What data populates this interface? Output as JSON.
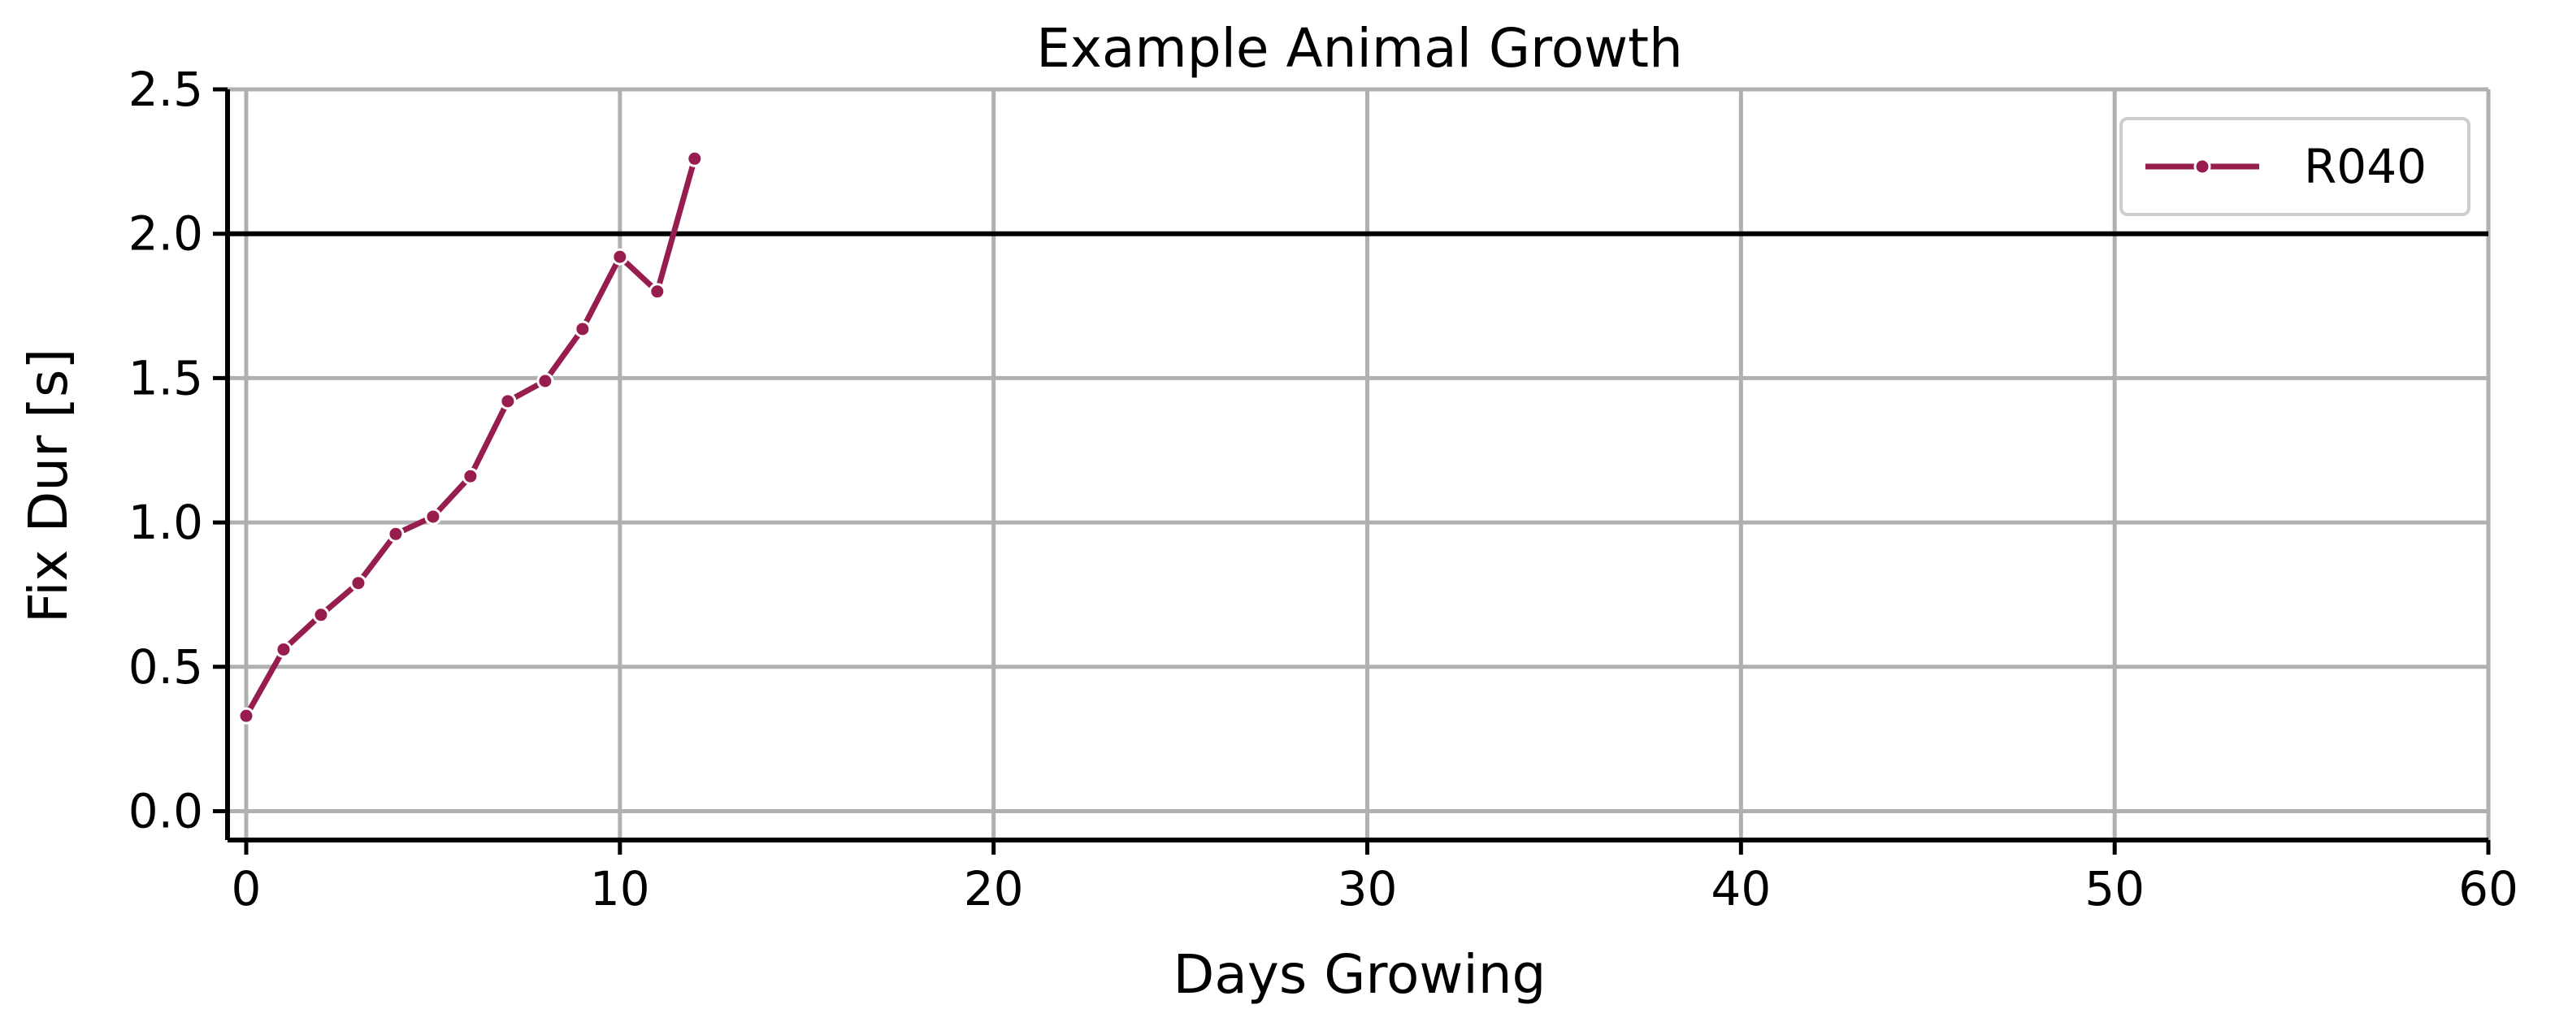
{
  "chart_data": {
    "type": "line",
    "title": "Example Animal Growth",
    "xlabel": "Days Growing",
    "ylabel": "Fix Dur [s]",
    "xlim": [
      -0.5,
      60
    ],
    "ylim": [
      -0.1,
      2.5
    ],
    "xticks": [
      0,
      10,
      20,
      30,
      40,
      50,
      60
    ],
    "yticks": [
      0.0,
      0.5,
      1.0,
      1.5,
      2.0,
      2.5
    ],
    "xtick_labels": [
      "0",
      "10",
      "20",
      "30",
      "40",
      "50",
      "60"
    ],
    "ytick_labels": [
      "0.0",
      "0.5",
      "1.0",
      "1.5",
      "2.0",
      "2.5"
    ],
    "grid": true,
    "reference_line": {
      "y": 2.0,
      "color": "#000000"
    },
    "legend": {
      "position": "top-right"
    },
    "series": [
      {
        "name": "R040",
        "color": "#961D4E",
        "marker": "circle",
        "x": [
          0,
          1,
          2,
          3,
          4,
          5,
          6,
          7,
          8,
          9,
          10,
          11,
          12
        ],
        "y": [
          0.33,
          0.56,
          0.68,
          0.79,
          0.96,
          1.02,
          1.16,
          1.42,
          1.49,
          1.67,
          1.92,
          1.8,
          2.26
        ]
      }
    ]
  }
}
